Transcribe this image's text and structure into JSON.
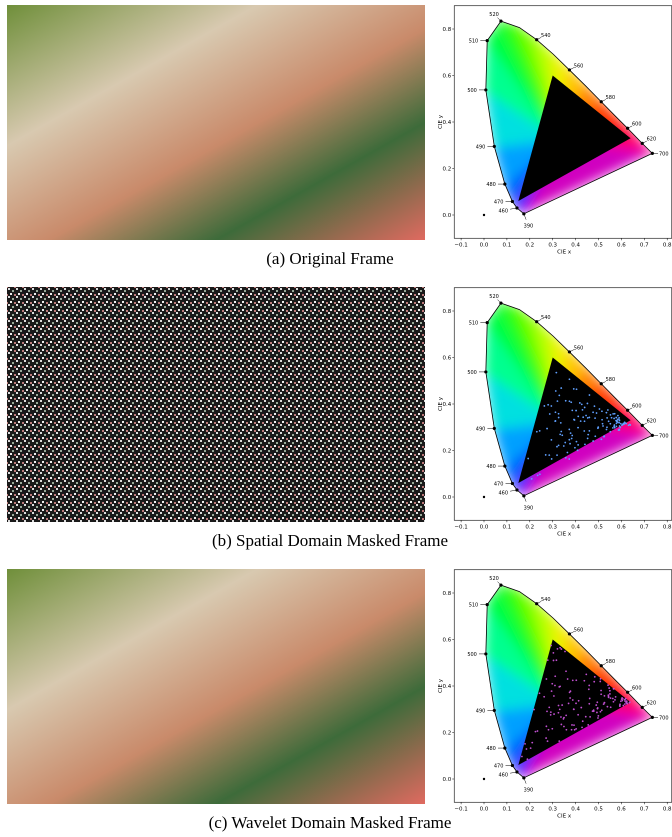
{
  "panels": [
    {
      "caption": "(a) Original Frame"
    },
    {
      "caption": "(b) Spatial Domain Masked Frame"
    },
    {
      "caption": "(c) Wavelet Domain Masked Frame"
    }
  ],
  "cie_diagram": {
    "xlabel": "CIE x",
    "ylabel": "CIE y",
    "xticks": [
      "−0.1",
      "0.0",
      "0.1",
      "0.2",
      "0.3",
      "0.4",
      "0.5",
      "0.6",
      "0.7",
      "0.8"
    ],
    "yticks": [
      "0.0",
      "0.2",
      "0.4",
      "0.6",
      "0.8"
    ],
    "wavelengths": [
      "390",
      "460",
      "470",
      "480",
      "490",
      "500",
      "510",
      "520",
      "540",
      "560",
      "580",
      "600",
      "620",
      "700"
    ]
  }
}
